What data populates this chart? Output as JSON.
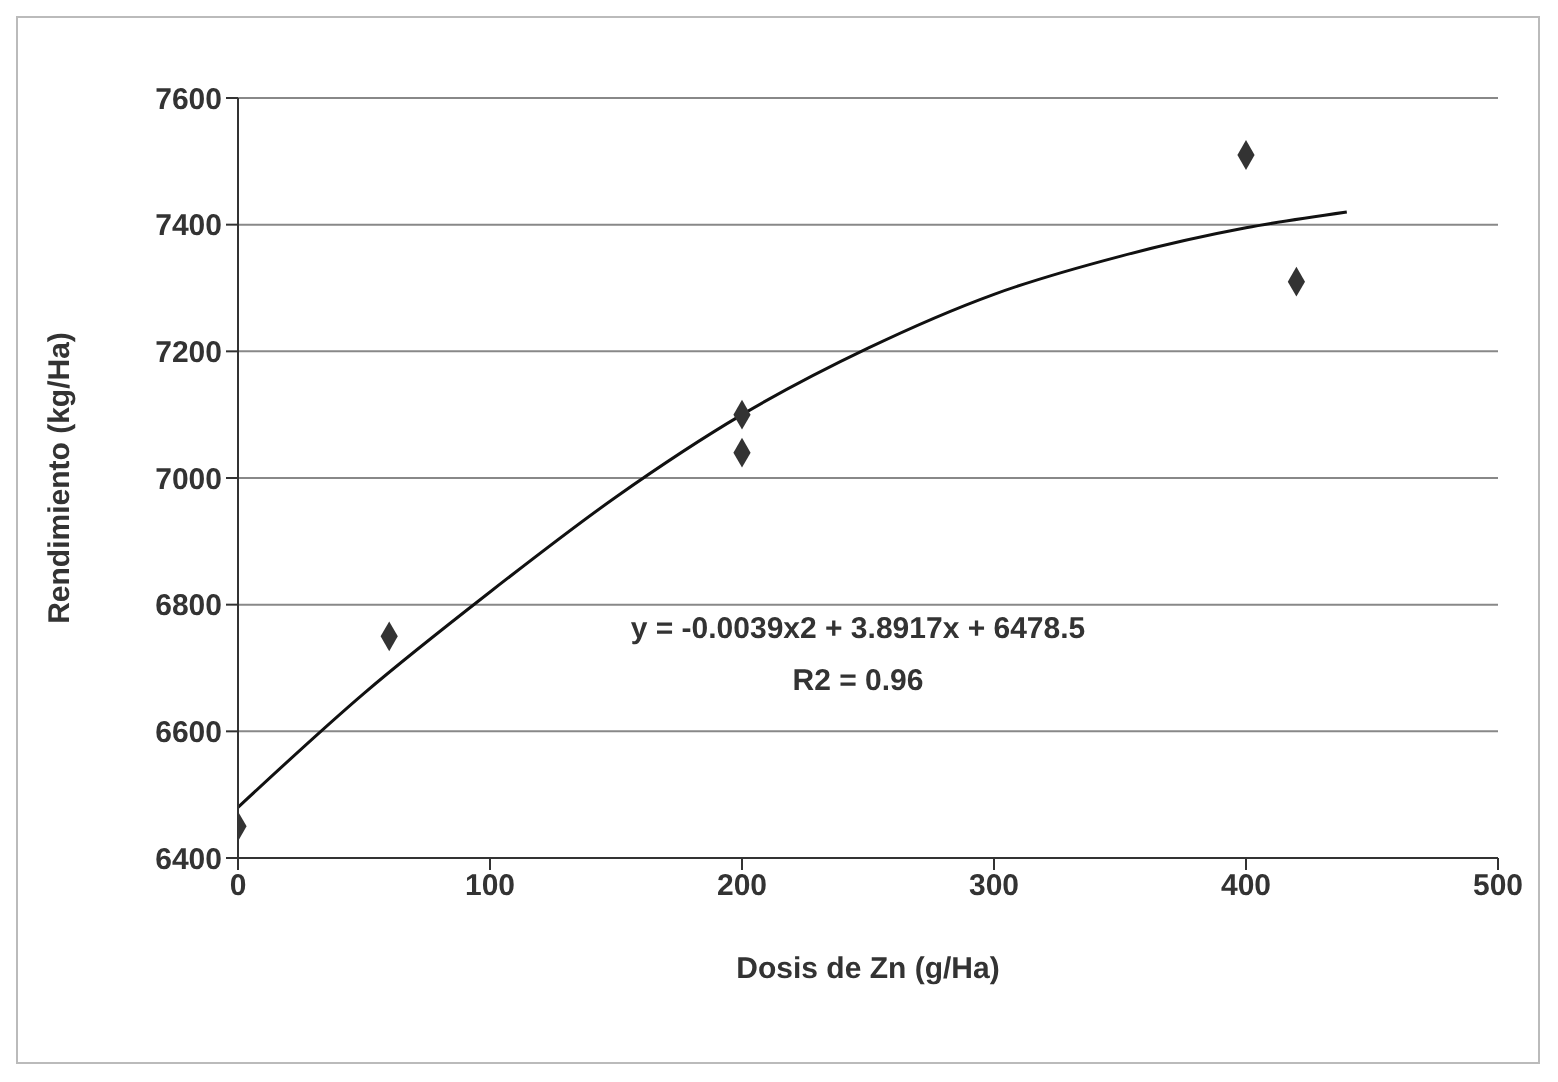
{
  "chart_data": {
    "type": "scatter",
    "xlabel": "Dosis de Zn (g/Ha)",
    "ylabel": "Rendimiento (kg/Ha)",
    "x": [
      0,
      60,
      200,
      200,
      400,
      420
    ],
    "series": [
      {
        "color": "#333333",
        "values": [
          6450,
          6750,
          7100,
          7040,
          7510,
          7310
        ]
      },
      {
        "type": "line",
        "marker": "none",
        "color": "#111111",
        "x": [
          0,
          50,
          100,
          150,
          200,
          250,
          300,
          350,
          400,
          440
        ],
        "values": [
          6480,
          6660,
          6820,
          6970,
          7100,
          7205,
          7290,
          7350,
          7395,
          7420
        ]
      }
    ],
    "marker": "diamond",
    "grid": "y",
    "legend": false,
    "xlim": [
      0,
      500
    ],
    "xticks": [
      0,
      100,
      200,
      300,
      400,
      500
    ],
    "ylim": [
      6400,
      7600
    ],
    "yticks": [
      6400,
      6600,
      6800,
      7000,
      7200,
      7400,
      7600
    ],
    "annotations": [
      "y = -0.0039x2 + 3.8917x + 6478.5",
      "R2 = 0.96"
    ]
  }
}
